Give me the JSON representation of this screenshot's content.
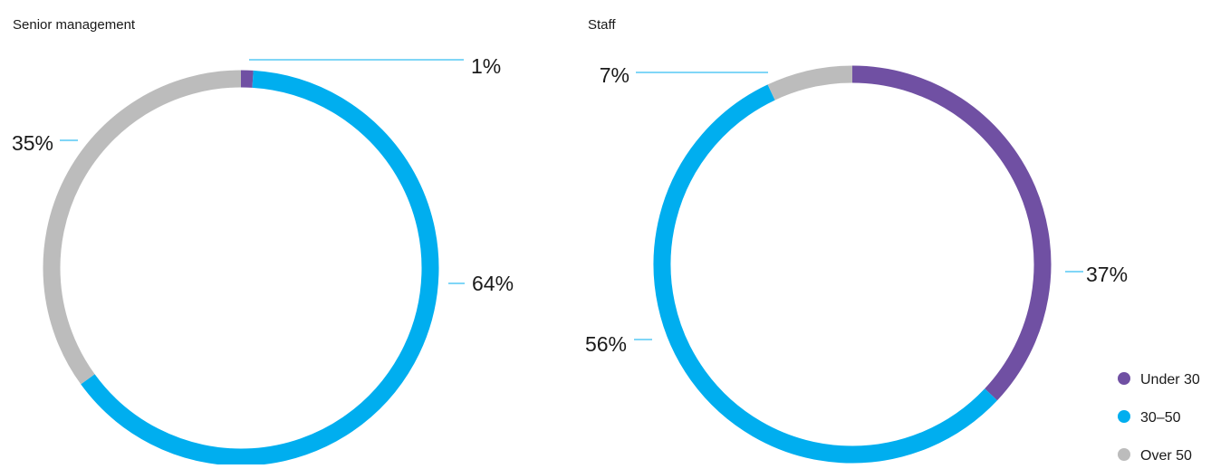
{
  "chart_data": [
    {
      "type": "pie",
      "title": "Senior management",
      "categories": [
        "Under 30",
        "30–50",
        "Over 50"
      ],
      "values": [
        1,
        64,
        35
      ],
      "labels": [
        "1%",
        "64%",
        "35%"
      ]
    },
    {
      "type": "pie",
      "title": "Staff",
      "categories": [
        "Under 30",
        "30–50",
        "Over 50"
      ],
      "values": [
        37,
        56,
        7
      ],
      "labels": [
        "37%",
        "56%",
        "7%"
      ]
    }
  ],
  "legend": {
    "items": [
      {
        "label": "Under 30",
        "color": "#7050a3"
      },
      {
        "label": "30–50",
        "color": "#00aeef"
      },
      {
        "label": "Over 50",
        "color": "#bcbcbc"
      }
    ]
  },
  "colors": {
    "leader_line": "#00aeef"
  }
}
